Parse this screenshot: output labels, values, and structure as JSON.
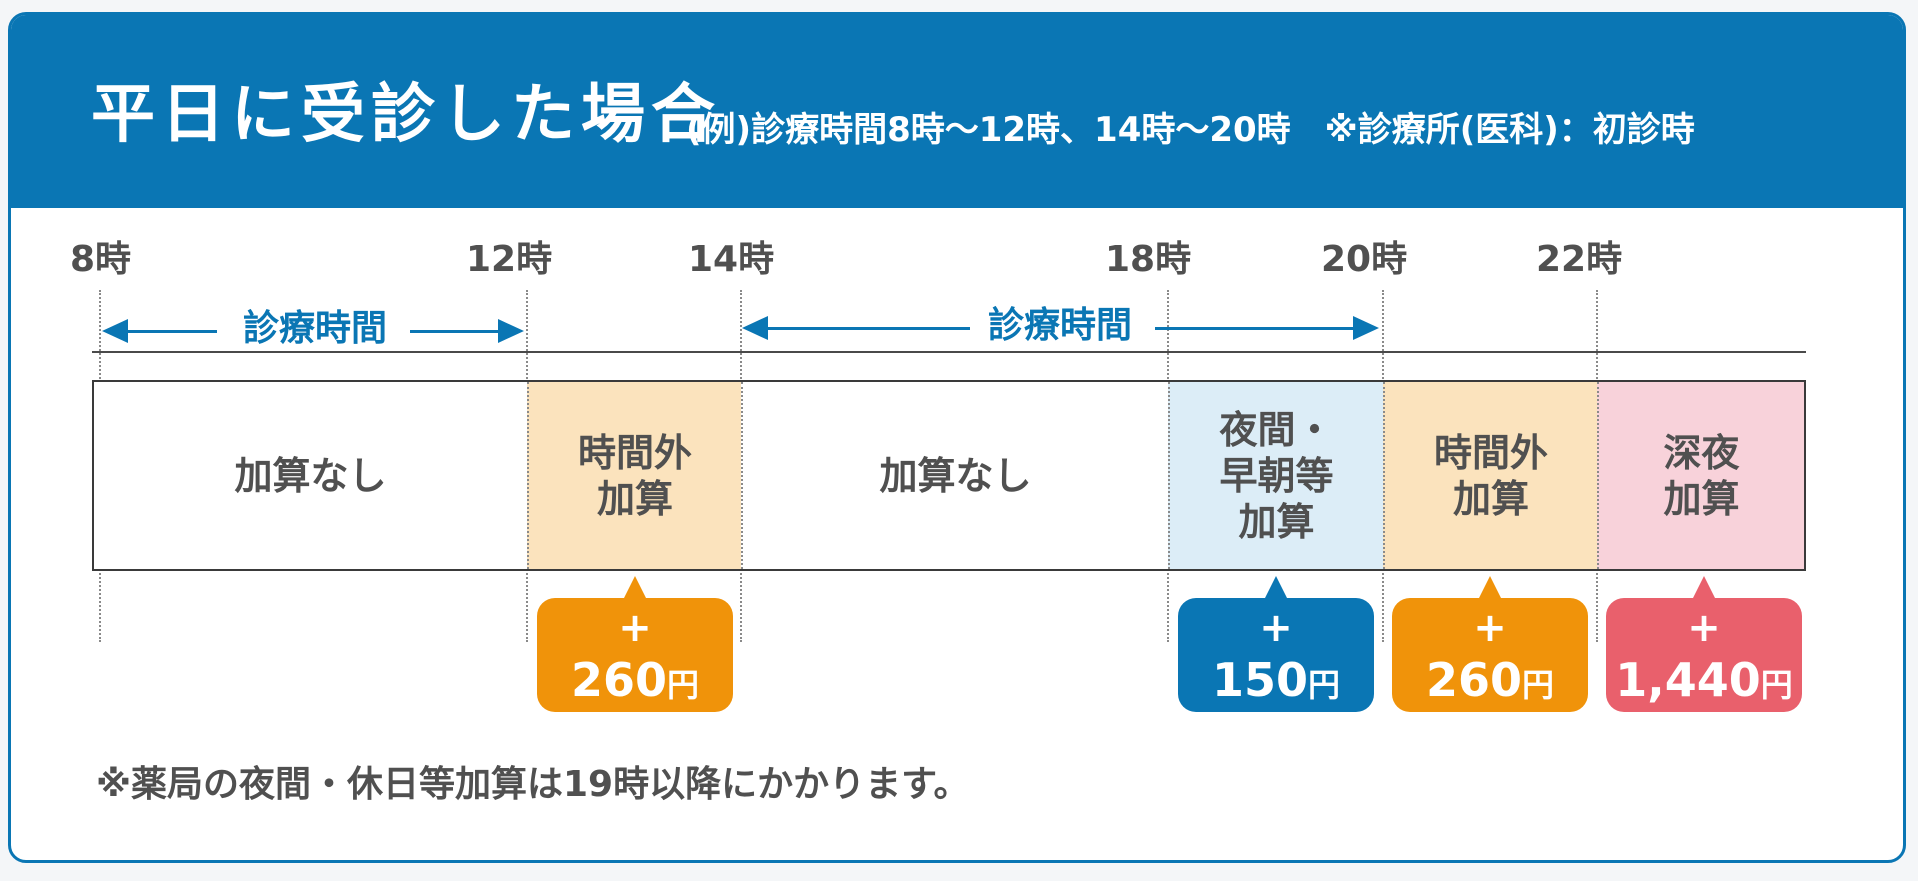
{
  "header": {
    "title": "平日に受診した場合",
    "subtitle": "(例)診療時間8時～12時、14時～20時　※診療所(医科)：初診時"
  },
  "colors": {
    "brand_blue": "#0a76b4",
    "overtime_fill": "#fbe3bd",
    "night_fill": "#dcedf7",
    "late_night_fill": "#f8d2da",
    "orange_badge": "#f0930a",
    "blue_badge": "#0a76b4",
    "red_badge": "#e9606c"
  },
  "hours": [
    "8時",
    "12時",
    "14時",
    "18時",
    "20時",
    "22時"
  ],
  "ranges": [
    {
      "label": "診療時間"
    },
    {
      "label": "診療時間"
    }
  ],
  "segments": [
    {
      "label": "加算なし"
    },
    {
      "label": "時間外\n加算"
    },
    {
      "label": "加算なし"
    },
    {
      "label": "夜間・\n早朝等\n加算"
    },
    {
      "label": "時間外\n加算"
    },
    {
      "label": "深夜\n加算"
    }
  ],
  "badges": [
    {
      "plus": "+",
      "amount": "260",
      "unit": "円"
    },
    {
      "plus": "+",
      "amount": "150",
      "unit": "円"
    },
    {
      "plus": "+",
      "amount": "260",
      "unit": "円"
    },
    {
      "plus": "+",
      "amount": "1,440",
      "unit": "円"
    }
  ],
  "note": "※薬局の夜間・休日等加算は19時以降にかかります。"
}
